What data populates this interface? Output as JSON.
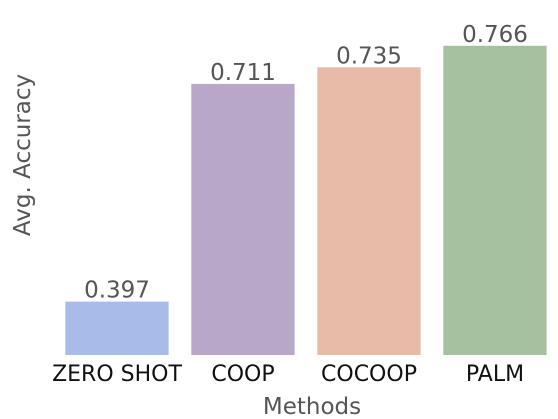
{
  "chart_data": {
    "type": "bar",
    "categories": [
      "ZERO SHOT",
      "COOP",
      "COCOOP",
      "PALM"
    ],
    "values": [
      0.397,
      0.711,
      0.735,
      0.766
    ],
    "value_labels": [
      "0.397",
      "0.711",
      "0.735",
      "0.766"
    ],
    "colors": [
      "#a9bbe8",
      "#b9a7c8",
      "#e8baa8",
      "#a6c1a0"
    ],
    "xlabel": "Methods",
    "ylabel": "Avg. Accuracy",
    "ylim": [
      0.32,
      0.77
    ],
    "grid": false,
    "legend": "none"
  }
}
